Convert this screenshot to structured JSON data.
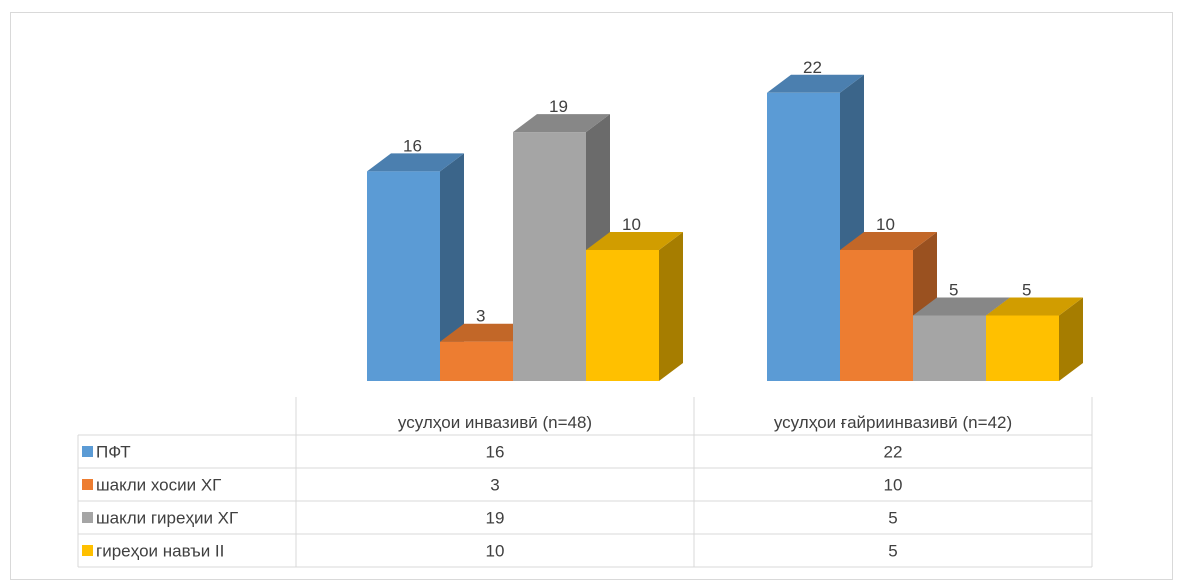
{
  "chart_data": {
    "type": "bar",
    "style": "3d-clustered-column-with-data-table",
    "title": "",
    "xlabel": "",
    "ylabel": "",
    "categories": [
      "усулҳои инвазивӣ (n=48)",
      "усулҳои ғайриинвазивӣ (n=42)"
    ],
    "series": [
      {
        "name": "ПФТ",
        "values": [
          16,
          22
        ],
        "color": "#5B9BD5"
      },
      {
        "name": "шакли хосии ХГ",
        "values": [
          3,
          10
        ],
        "color": "#ED7D31"
      },
      {
        "name": "шакли гиреҳии ХГ",
        "values": [
          19,
          5
        ],
        "color": "#A5A5A5"
      },
      {
        "name": "гиреҳои навъи II",
        "values": [
          10,
          5
        ],
        "color": "#FFC000"
      }
    ],
    "ylim": [
      0,
      22
    ],
    "grid": false,
    "legend": "data-table"
  }
}
